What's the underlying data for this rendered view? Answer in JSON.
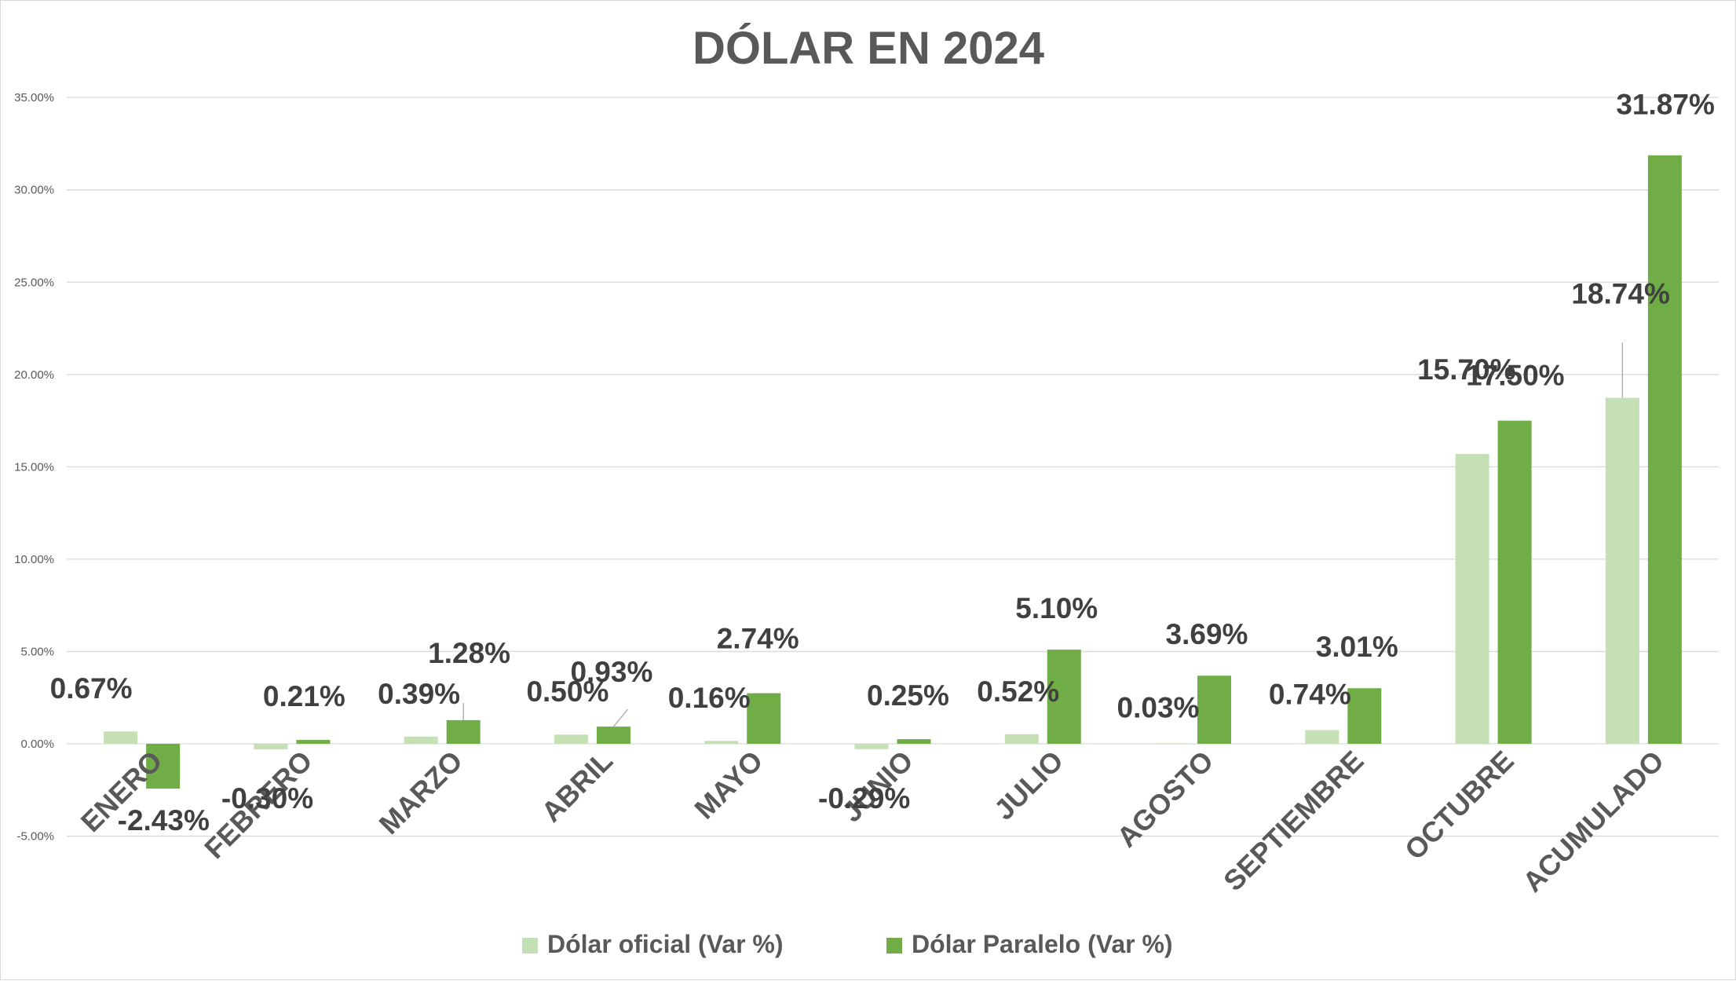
{
  "chart_data": {
    "type": "bar",
    "title": "DÓLAR EN 2024",
    "xlabel": "",
    "ylabel": "",
    "ylim": [
      -5,
      35
    ],
    "ytick_step": 5,
    "ytick_labels": [
      "-5.00%",
      "0.00%",
      "5.00%",
      "10.00%",
      "15.00%",
      "20.00%",
      "25.00%",
      "30.00%",
      "35.00%"
    ],
    "grid": true,
    "legend_position": "bottom",
    "categories": [
      "ENERO",
      "FEBRERO",
      "MARZO",
      "ABRIL",
      "MAYO",
      "JUNIO",
      "JULIO",
      "AGOSTO",
      "SEPTIEMBRE",
      "OCTUBRE",
      "ACUMULADO"
    ],
    "series": [
      {
        "name": "Dólar oficial (Var %)",
        "color": "#c5e0b4",
        "values": [
          0.67,
          -0.3,
          0.39,
          0.5,
          0.16,
          -0.29,
          0.52,
          0.03,
          0.74,
          15.7,
          18.74
        ],
        "labels": [
          "0.67%",
          "-0.30%",
          "0.39%",
          "0.50%",
          "0.16%",
          "-0.29%",
          "0.52%",
          "0.03%",
          "0.74%",
          "15.70%",
          "18.74%"
        ]
      },
      {
        "name": "Dólar Paralelo (Var %)",
        "color": "#70ad47",
        "values": [
          -2.43,
          0.21,
          1.28,
          0.93,
          2.74,
          0.25,
          5.1,
          3.69,
          3.01,
          17.5,
          31.87
        ],
        "labels": [
          "-2.43%",
          "0.21%",
          "1.28%",
          "0.93%",
          "2.74%",
          "0.25%",
          "5.10%",
          "3.69%",
          "3.01%",
          "17.50%",
          "31.87%"
        ]
      }
    ]
  }
}
